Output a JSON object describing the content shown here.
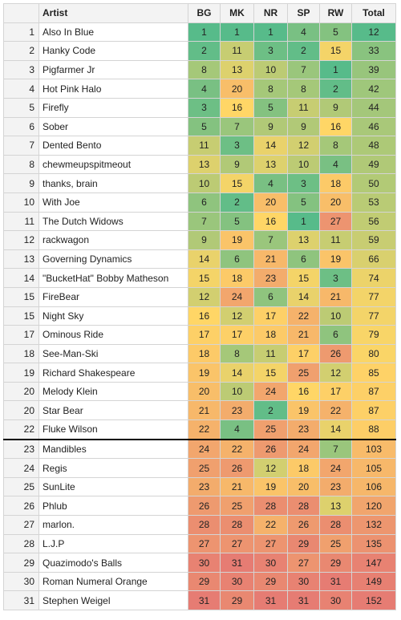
{
  "table": {
    "columns": [
      "",
      "Artist",
      "BG",
      "MK",
      "NR",
      "SP",
      "RW",
      "Total"
    ],
    "cutoff_after_row": 22,
    "rows": [
      {
        "rank": "1",
        "artist": "Also In Blue",
        "scores": [
          1,
          1,
          1,
          4,
          5
        ],
        "total": 12
      },
      {
        "rank": "2",
        "artist": "Hanky Code",
        "scores": [
          2,
          11,
          3,
          2,
          15
        ],
        "total": 33
      },
      {
        "rank": "3",
        "artist": "Pigfarmer Jr",
        "scores": [
          8,
          13,
          10,
          7,
          1
        ],
        "total": 39
      },
      {
        "rank": "4",
        "artist": "Hot Pink Halo",
        "scores": [
          4,
          20,
          8,
          8,
          2
        ],
        "total": 42
      },
      {
        "rank": "5",
        "artist": "Firefly",
        "scores": [
          3,
          16,
          5,
          11,
          9
        ],
        "total": 44
      },
      {
        "rank": "6",
        "artist": "Sober",
        "scores": [
          5,
          7,
          9,
          9,
          16
        ],
        "total": 46
      },
      {
        "rank": "7",
        "artist": "Dented Bento",
        "scores": [
          11,
          3,
          14,
          12,
          8
        ],
        "total": 48
      },
      {
        "rank": "8",
        "artist": "chewmeupspitmeout",
        "scores": [
          13,
          9,
          13,
          10,
          4
        ],
        "total": 49
      },
      {
        "rank": "9",
        "artist": "thanks, brain",
        "scores": [
          10,
          15,
          4,
          3,
          18
        ],
        "total": 50
      },
      {
        "rank": "10",
        "artist": "With Joe",
        "scores": [
          6,
          2,
          20,
          5,
          20
        ],
        "total": 53
      },
      {
        "rank": "11",
        "artist": "The Dutch Widows",
        "scores": [
          7,
          5,
          16,
          1,
          27
        ],
        "total": 56
      },
      {
        "rank": "12",
        "artist": "rackwagon",
        "scores": [
          9,
          19,
          7,
          13,
          11
        ],
        "total": 59
      },
      {
        "rank": "13",
        "artist": "Governing Dynamics",
        "scores": [
          14,
          6,
          21,
          6,
          19
        ],
        "total": 66
      },
      {
        "rank": "14",
        "artist": "\"BucketHat\" Bobby Matheson",
        "scores": [
          15,
          18,
          23,
          15,
          3
        ],
        "total": 74
      },
      {
        "rank": "15",
        "artist": "FireBear",
        "scores": [
          12,
          24,
          6,
          14,
          21
        ],
        "total": 77
      },
      {
        "rank": "15",
        "artist": "Night Sky",
        "scores": [
          16,
          12,
          17,
          22,
          10
        ],
        "total": 77
      },
      {
        "rank": "17",
        "artist": "Ominous Ride",
        "scores": [
          17,
          17,
          18,
          21,
          6
        ],
        "total": 79
      },
      {
        "rank": "18",
        "artist": "See-Man-Ski",
        "scores": [
          18,
          8,
          11,
          17,
          26
        ],
        "total": 80
      },
      {
        "rank": "19",
        "artist": "Richard Shakespeare",
        "scores": [
          19,
          14,
          15,
          25,
          12
        ],
        "total": 85
      },
      {
        "rank": "20",
        "artist": "Melody Klein",
        "scores": [
          20,
          10,
          24,
          16,
          17
        ],
        "total": 87
      },
      {
        "rank": "20",
        "artist": "Star Bear",
        "scores": [
          21,
          23,
          2,
          19,
          22
        ],
        "total": 87
      },
      {
        "rank": "22",
        "artist": "Fluke Wilson",
        "scores": [
          22,
          4,
          25,
          23,
          14
        ],
        "total": 88
      },
      {
        "rank": "23",
        "artist": "Mandibles",
        "scores": [
          24,
          22,
          26,
          24,
          7
        ],
        "total": 103
      },
      {
        "rank": "24",
        "artist": "Regis",
        "scores": [
          25,
          26,
          12,
          18,
          24
        ],
        "total": 105
      },
      {
        "rank": "25",
        "artist": "SunLite",
        "scores": [
          23,
          21,
          19,
          20,
          23
        ],
        "total": 106
      },
      {
        "rank": "26",
        "artist": "Phlub",
        "scores": [
          26,
          25,
          28,
          28,
          13
        ],
        "total": 120
      },
      {
        "rank": "27",
        "artist": "marlon.",
        "scores": [
          28,
          28,
          22,
          26,
          28
        ],
        "total": 132
      },
      {
        "rank": "28",
        "artist": "L.J.P",
        "scores": [
          27,
          27,
          27,
          29,
          25
        ],
        "total": 135
      },
      {
        "rank": "29",
        "artist": "Quazimodo's Balls",
        "scores": [
          30,
          31,
          30,
          27,
          29
        ],
        "total": 147
      },
      {
        "rank": "30",
        "artist": "Roman Numeral Orange",
        "scores": [
          29,
          30,
          29,
          30,
          31
        ],
        "total": 149
      },
      {
        "rank": "31",
        "artist": "Stephen Weigel",
        "scores": [
          31,
          29,
          31,
          31,
          30
        ],
        "total": 152
      }
    ]
  },
  "colors": {
    "scale_low": "#57bb8a",
    "scale_mid": "#ffd666",
    "scale_high": "#e67c73"
  }
}
